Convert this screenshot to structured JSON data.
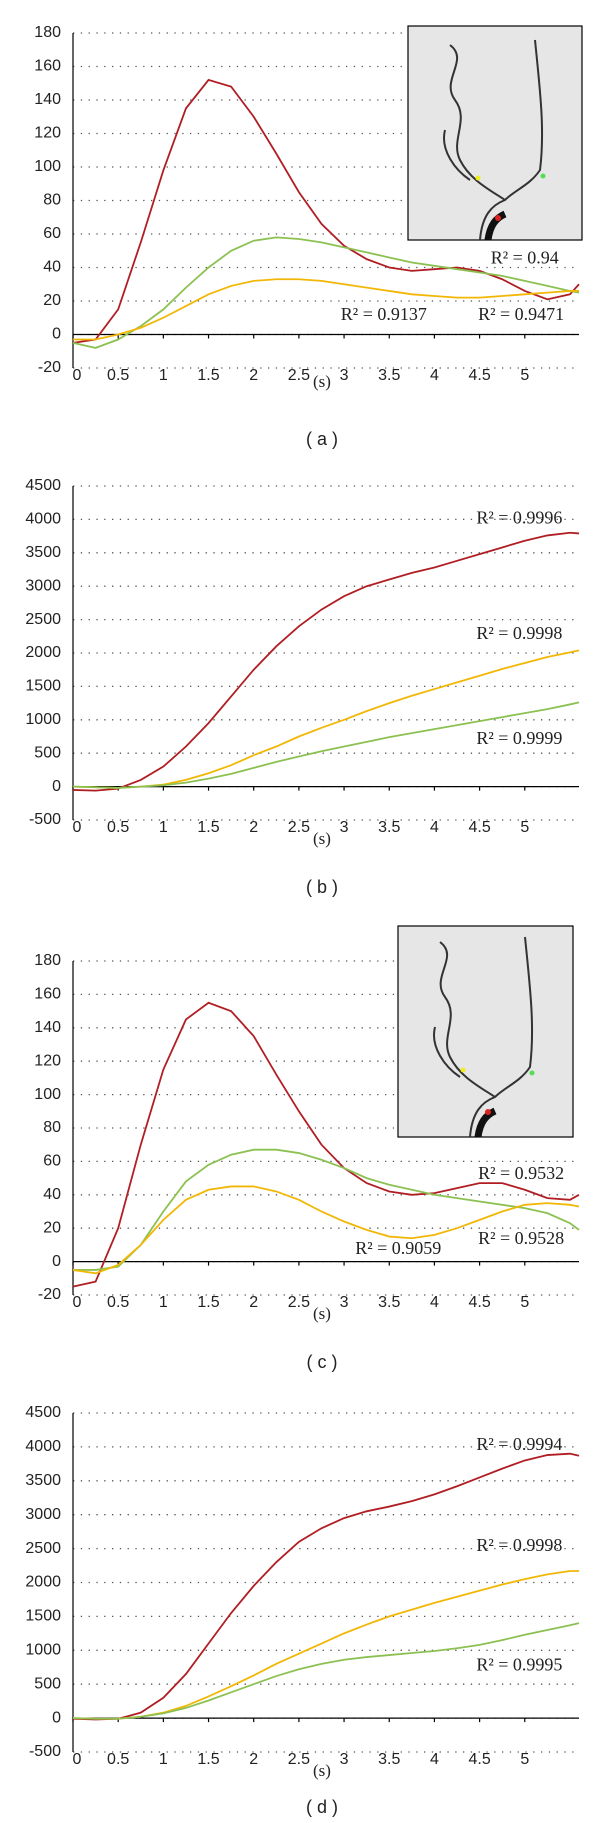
{
  "chart_data": [
    {
      "type": "line",
      "x_label": "(s)",
      "caption": "( a )",
      "x": [
        0,
        0.25,
        0.5,
        0.75,
        1,
        1.25,
        1.5,
        1.75,
        2,
        2.25,
        2.5,
        2.75,
        3,
        3.25,
        3.5,
        3.75,
        4,
        4.25,
        4.5,
        4.75,
        5,
        5.25,
        5.5,
        5.6
      ],
      "xlim": [
        0,
        5.6
      ],
      "xticks": [
        0,
        0.5,
        1,
        1.5,
        2,
        2.5,
        3,
        3.5,
        4,
        4.5,
        5
      ],
      "ylim": [
        -20,
        180
      ],
      "yticks": [
        -20,
        0,
        20,
        40,
        60,
        80,
        100,
        120,
        140,
        160,
        180
      ],
      "grid": true,
      "series": [
        {
          "color": "#b01e23",
          "values": [
            -5,
            -3,
            15,
            55,
            98,
            135,
            152,
            148,
            130,
            108,
            85,
            66,
            53,
            45,
            40,
            38,
            39,
            40,
            38,
            33,
            26,
            21,
            24,
            30
          ]
        },
        {
          "color": "#8cc152",
          "values": [
            -5,
            -8,
            -3,
            5,
            15,
            28,
            40,
            50,
            56,
            58,
            57,
            55,
            52,
            49,
            46,
            43,
            41,
            39,
            37,
            35,
            32,
            29,
            26,
            25
          ]
        },
        {
          "color": "#f2b705",
          "values": [
            -3,
            -3,
            0,
            4,
            10,
            17,
            24,
            29,
            32,
            33,
            33,
            32,
            30,
            28,
            26,
            24,
            23,
            22,
            22,
            23,
            24,
            25,
            26,
            26
          ]
        }
      ],
      "annotations": [
        "R² = 0.94",
        "R² = 0.9137",
        "R² = 0.9471"
      ]
    },
    {
      "type": "line",
      "x_label": "(s)",
      "caption": "( b )",
      "x": [
        0,
        0.25,
        0.5,
        0.75,
        1,
        1.25,
        1.5,
        1.75,
        2,
        2.25,
        2.5,
        2.75,
        3,
        3.25,
        3.5,
        3.75,
        4,
        4.25,
        4.5,
        4.75,
        5,
        5.25,
        5.5,
        5.6
      ],
      "xlim": [
        0,
        5.6
      ],
      "xticks": [
        0,
        0.5,
        1,
        1.5,
        2,
        2.5,
        3,
        3.5,
        4,
        4.5,
        5
      ],
      "ylim": [
        -500,
        4500
      ],
      "yticks": [
        -500,
        0,
        500,
        1000,
        1500,
        2000,
        2500,
        3000,
        3500,
        4000,
        4500
      ],
      "grid": true,
      "series": [
        {
          "color": "#b01e23",
          "values": [
            -50,
            -60,
            -30,
            100,
            300,
            600,
            950,
            1350,
            1750,
            2100,
            2400,
            2650,
            2850,
            3000,
            3100,
            3200,
            3280,
            3380,
            3480,
            3580,
            3680,
            3760,
            3800,
            3790
          ]
        },
        {
          "color": "#f2b705",
          "values": [
            0,
            -10,
            -20,
            0,
            30,
            100,
            200,
            320,
            470,
            600,
            750,
            880,
            1000,
            1130,
            1250,
            1360,
            1460,
            1560,
            1660,
            1760,
            1850,
            1940,
            2010,
            2040
          ]
        },
        {
          "color": "#8cc152",
          "values": [
            0,
            -10,
            -20,
            0,
            20,
            60,
            120,
            190,
            280,
            370,
            450,
            530,
            600,
            670,
            740,
            800,
            860,
            920,
            980,
            1040,
            1100,
            1160,
            1230,
            1260
          ]
        }
      ],
      "annotations": [
        "R² = 0.9996",
        "R² = 0.9998",
        "R² = 0.9999"
      ]
    },
    {
      "type": "line",
      "x_label": "(s)",
      "caption": "( c )",
      "x": [
        0,
        0.25,
        0.5,
        0.75,
        1,
        1.25,
        1.5,
        1.75,
        2,
        2.25,
        2.5,
        2.75,
        3,
        3.25,
        3.5,
        3.75,
        4,
        4.25,
        4.5,
        4.75,
        5,
        5.25,
        5.5,
        5.6
      ],
      "xlim": [
        0,
        5.6
      ],
      "xticks": [
        0,
        0.5,
        1,
        1.5,
        2,
        2.5,
        3,
        3.5,
        4,
        4.5,
        5
      ],
      "ylim": [
        -20,
        180
      ],
      "yticks": [
        -20,
        0,
        20,
        40,
        60,
        80,
        100,
        120,
        140,
        160,
        180
      ],
      "grid": true,
      "series": [
        {
          "color": "#b01e23",
          "values": [
            -15,
            -12,
            20,
            70,
            115,
            145,
            155,
            150,
            135,
            112,
            90,
            70,
            56,
            47,
            42,
            40,
            41,
            44,
            47,
            47,
            43,
            38,
            37,
            40
          ]
        },
        {
          "color": "#8cc152",
          "values": [
            -5,
            -5,
            -3,
            10,
            30,
            48,
            58,
            64,
            67,
            67,
            65,
            61,
            56,
            50,
            46,
            43,
            40,
            38,
            36,
            34,
            32,
            29,
            23,
            19
          ]
        },
        {
          "color": "#f2b705",
          "values": [
            -5,
            -7,
            -2,
            10,
            25,
            37,
            43,
            45,
            45,
            42,
            37,
            30,
            24,
            19,
            15,
            14,
            16,
            20,
            25,
            30,
            34,
            35,
            34,
            33
          ]
        }
      ],
      "annotations": [
        "R² = 0.9532",
        "R² = 0.9059",
        "R² = 0.9528"
      ]
    },
    {
      "type": "line",
      "x_label": "(s)",
      "caption": "( d )",
      "x": [
        0,
        0.25,
        0.5,
        0.75,
        1,
        1.25,
        1.5,
        1.75,
        2,
        2.25,
        2.5,
        2.75,
        3,
        3.25,
        3.5,
        3.75,
        4,
        4.25,
        4.5,
        4.75,
        5,
        5.25,
        5.5,
        5.6
      ],
      "xlim": [
        0,
        5.6
      ],
      "xticks": [
        0,
        0.5,
        1,
        1.5,
        2,
        2.5,
        3,
        3.5,
        4,
        4.5,
        5
      ],
      "ylim": [
        -500,
        4500
      ],
      "yticks": [
        -500,
        0,
        500,
        1000,
        1500,
        2000,
        2500,
        3000,
        3500,
        4000,
        4500
      ],
      "grid": true,
      "series": [
        {
          "color": "#b01e23",
          "values": [
            -10,
            -20,
            -10,
            80,
            300,
            650,
            1100,
            1550,
            1950,
            2300,
            2600,
            2800,
            2950,
            3050,
            3120,
            3200,
            3300,
            3420,
            3550,
            3680,
            3800,
            3880,
            3900,
            3870
          ]
        },
        {
          "color": "#f2b705",
          "values": [
            0,
            -10,
            -10,
            20,
            80,
            180,
            320,
            470,
            630,
            800,
            950,
            1100,
            1250,
            1380,
            1500,
            1600,
            1700,
            1790,
            1880,
            1970,
            2050,
            2120,
            2170,
            2170
          ]
        },
        {
          "color": "#8cc152",
          "values": [
            0,
            -10,
            -10,
            20,
            70,
            150,
            260,
            380,
            500,
            620,
            720,
            800,
            860,
            900,
            930,
            960,
            990,
            1030,
            1080,
            1150,
            1230,
            1300,
            1370,
            1400
          ]
        }
      ],
      "annotations": [
        "R² = 0.9994",
        "R² = 0.9998",
        "R² = 0.9995"
      ]
    }
  ]
}
